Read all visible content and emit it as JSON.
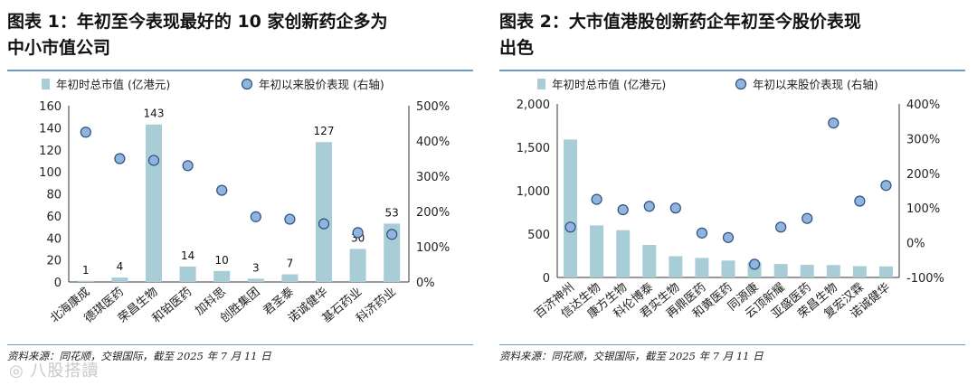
{
  "watermark": "◎ 八股搭讀",
  "panels": [
    {
      "title_line1": "图表 1：年初至今表现最好的 10 家创新药企多为",
      "title_line2": "中小市值公司",
      "source": "资料来源：同花顺，交银国际，截至 2025 年 7 月 11 日",
      "bar_legend": "年初时总市值 (亿港元)",
      "dot_legend": "年初以来股价表现 (右轴)"
    },
    {
      "title_line1": "图表 2：大市值港股创新药企年初至今股价表现",
      "title_line2": "出色",
      "source": "资料来源：同花顺，交银国际，截至 2025 年 7 月 11 日",
      "bar_legend": "年初时总市值 (亿港元)",
      "dot_legend": "年初以来股价表现 (右轴)"
    }
  ],
  "chart_data": [
    {
      "type": "bar",
      "title": "图表 1：年初至今表现最好的 10 家创新药企多为中小市值公司",
      "categories": [
        "北海康成",
        "德琪医药",
        "荣昌生物",
        "和铂医药",
        "加科思",
        "创胜集团",
        "君圣泰",
        "诺诚健华",
        "基石药业",
        "科济药业"
      ],
      "series": [
        {
          "name": "年初时总市值 (亿港元)",
          "type": "bar",
          "axis": "left",
          "values": [
            1,
            4,
            143,
            14,
            10,
            3,
            7,
            127,
            30,
            53
          ],
          "labels": [
            "1",
            "4",
            "143",
            "14",
            "10",
            "3",
            "7",
            "127",
            "30",
            "53"
          ]
        },
        {
          "name": "年初以来股价表现 (右轴)",
          "type": "scatter",
          "axis": "right",
          "values": [
            425,
            350,
            345,
            330,
            260,
            185,
            178,
            165,
            140,
            135
          ]
        }
      ],
      "ylim": [
        0,
        160
      ],
      "y_ticks": [
        0,
        20,
        40,
        60,
        80,
        100,
        120,
        140,
        160
      ],
      "y_tick_labels": [
        "0",
        "20",
        "40",
        "60",
        "80",
        "100",
        "120",
        "140",
        "160"
      ],
      "y2lim": [
        0,
        500
      ],
      "y2_ticks": [
        0,
        100,
        200,
        300,
        400,
        500
      ],
      "y2_tick_labels": [
        "0%",
        "100%",
        "200%",
        "300%",
        "400%",
        "500%"
      ],
      "legend_position": "top"
    },
    {
      "type": "bar",
      "title": "图表 2：大市值港股创新药企年初至今股价表现出色",
      "categories": [
        "百济神州",
        "信达生物",
        "康方生物",
        "科伦博泰",
        "君实生物",
        "再鼎医药",
        "和黄医药",
        "同源康",
        "云顶新耀",
        "亚盛医药",
        "荣昌生物",
        "复宏汉霖",
        "诺诚健华"
      ],
      "series": [
        {
          "name": "年初时总市值 (亿港元)",
          "type": "bar",
          "axis": "left",
          "values": [
            1590,
            600,
            545,
            375,
            245,
            225,
            195,
            175,
            155,
            145,
            143,
            130,
            127
          ]
        },
        {
          "name": "年初以来股价表现 (右轴)",
          "type": "scatter",
          "axis": "right",
          "values": [
            45,
            125,
            95,
            105,
            100,
            28,
            15,
            -62,
            45,
            70,
            345,
            120,
            165
          ]
        }
      ],
      "ylim": [
        0,
        2000
      ],
      "y_ticks": [
        0,
        500,
        1000,
        1500,
        2000
      ],
      "y_tick_labels": [
        "0",
        "500",
        "1,000",
        "1,500",
        "2,000"
      ],
      "y2lim": [
        -100,
        400
      ],
      "y2_ticks": [
        -100,
        0,
        100,
        200,
        300,
        400
      ],
      "y2_tick_labels": [
        "-100%",
        "0%",
        "100%",
        "200%",
        "300%",
        "400%"
      ],
      "legend_position": "top"
    }
  ]
}
